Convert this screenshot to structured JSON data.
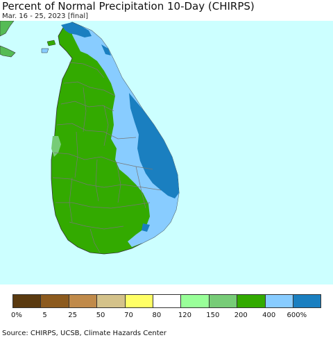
{
  "title": "Percent of Normal Precipitation 10-Day (CHIRPS)",
  "subtitle": "Mar. 16 - 25, 2023 [final]",
  "source": "Source: CHIRPS, UCSB, Climate Hazards Center",
  "colors": {
    "ocean": "#ccffff",
    "land_green": "#33aa00",
    "light_green": "#77cc77",
    "light_blue": "#88ccff",
    "blue": "#1a7fc0",
    "india_green": "#55bb55",
    "boundary": "#777777"
  },
  "legend": {
    "colors": [
      "#5a3a10",
      "#8c5a1e",
      "#c08a4a",
      "#d4c28a",
      "#ffff66",
      "#ffffff",
      "#99ff99",
      "#77cc77",
      "#33aa00",
      "#88ccff",
      "#1a7fc0"
    ],
    "labels": [
      "0%",
      "5",
      "25",
      "50",
      "70",
      "80",
      "120",
      "150",
      "200",
      "400",
      "600%"
    ]
  }
}
